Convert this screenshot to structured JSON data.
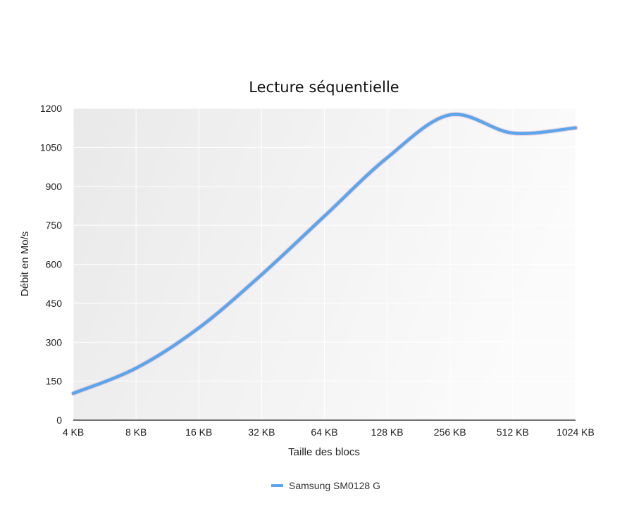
{
  "chart_data": {
    "type": "line",
    "title": "Lecture séquentielle",
    "xlabel": "Taille des blocs",
    "ylabel": "Débit en Mo/s",
    "categories": [
      "4 KB",
      "8 KB",
      "16 KB",
      "32 KB",
      "64 KB",
      "128 KB",
      "256 KB",
      "512 KB",
      "1024 KB"
    ],
    "ylim": [
      0,
      1200
    ],
    "yticks": [
      0,
      150,
      300,
      450,
      600,
      750,
      900,
      1050,
      1200
    ],
    "grid": true,
    "legend_position": "bottom-center",
    "series": [
      {
        "name": "Samsung SM0128 G",
        "color": "#5aa5ec",
        "values": [
          103,
          200,
          355,
          560,
          785,
          1010,
          1175,
          1105,
          1125
        ]
      }
    ]
  }
}
